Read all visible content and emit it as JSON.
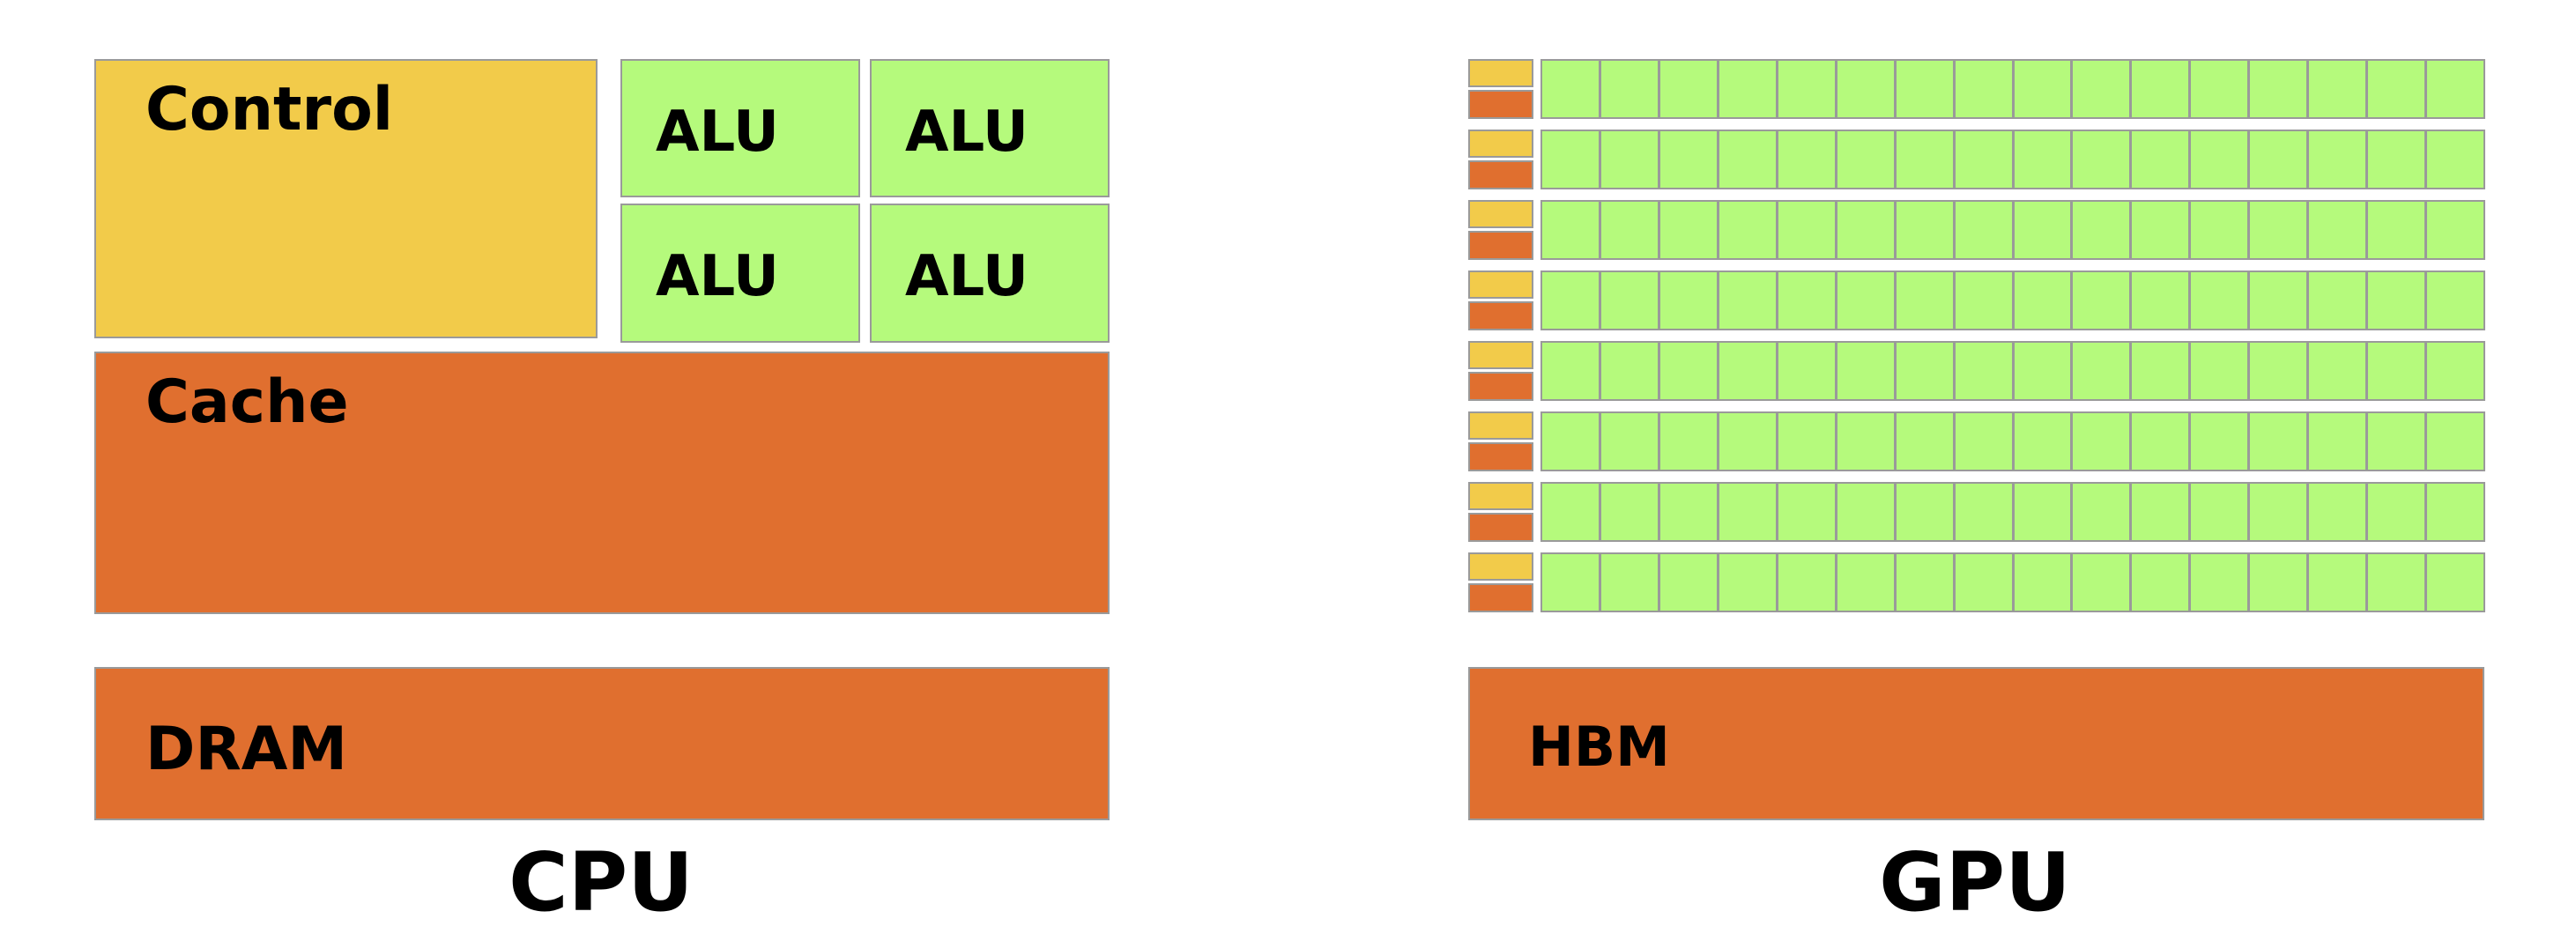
{
  "cpu": {
    "control_label": "Control",
    "alu_labels": [
      "ALU",
      "ALU",
      "ALU",
      "ALU"
    ],
    "cache_label": "Cache",
    "dram_label": "DRAM",
    "title": "CPU"
  },
  "gpu": {
    "rows": 8,
    "alus_per_row": 16,
    "hbm_label": "HBM",
    "title": "GPU"
  },
  "colors": {
    "control": "#f2cb4a",
    "cache": "#e06f2f",
    "alu": "#b5fa7c",
    "border": "#9a9a9a"
  }
}
